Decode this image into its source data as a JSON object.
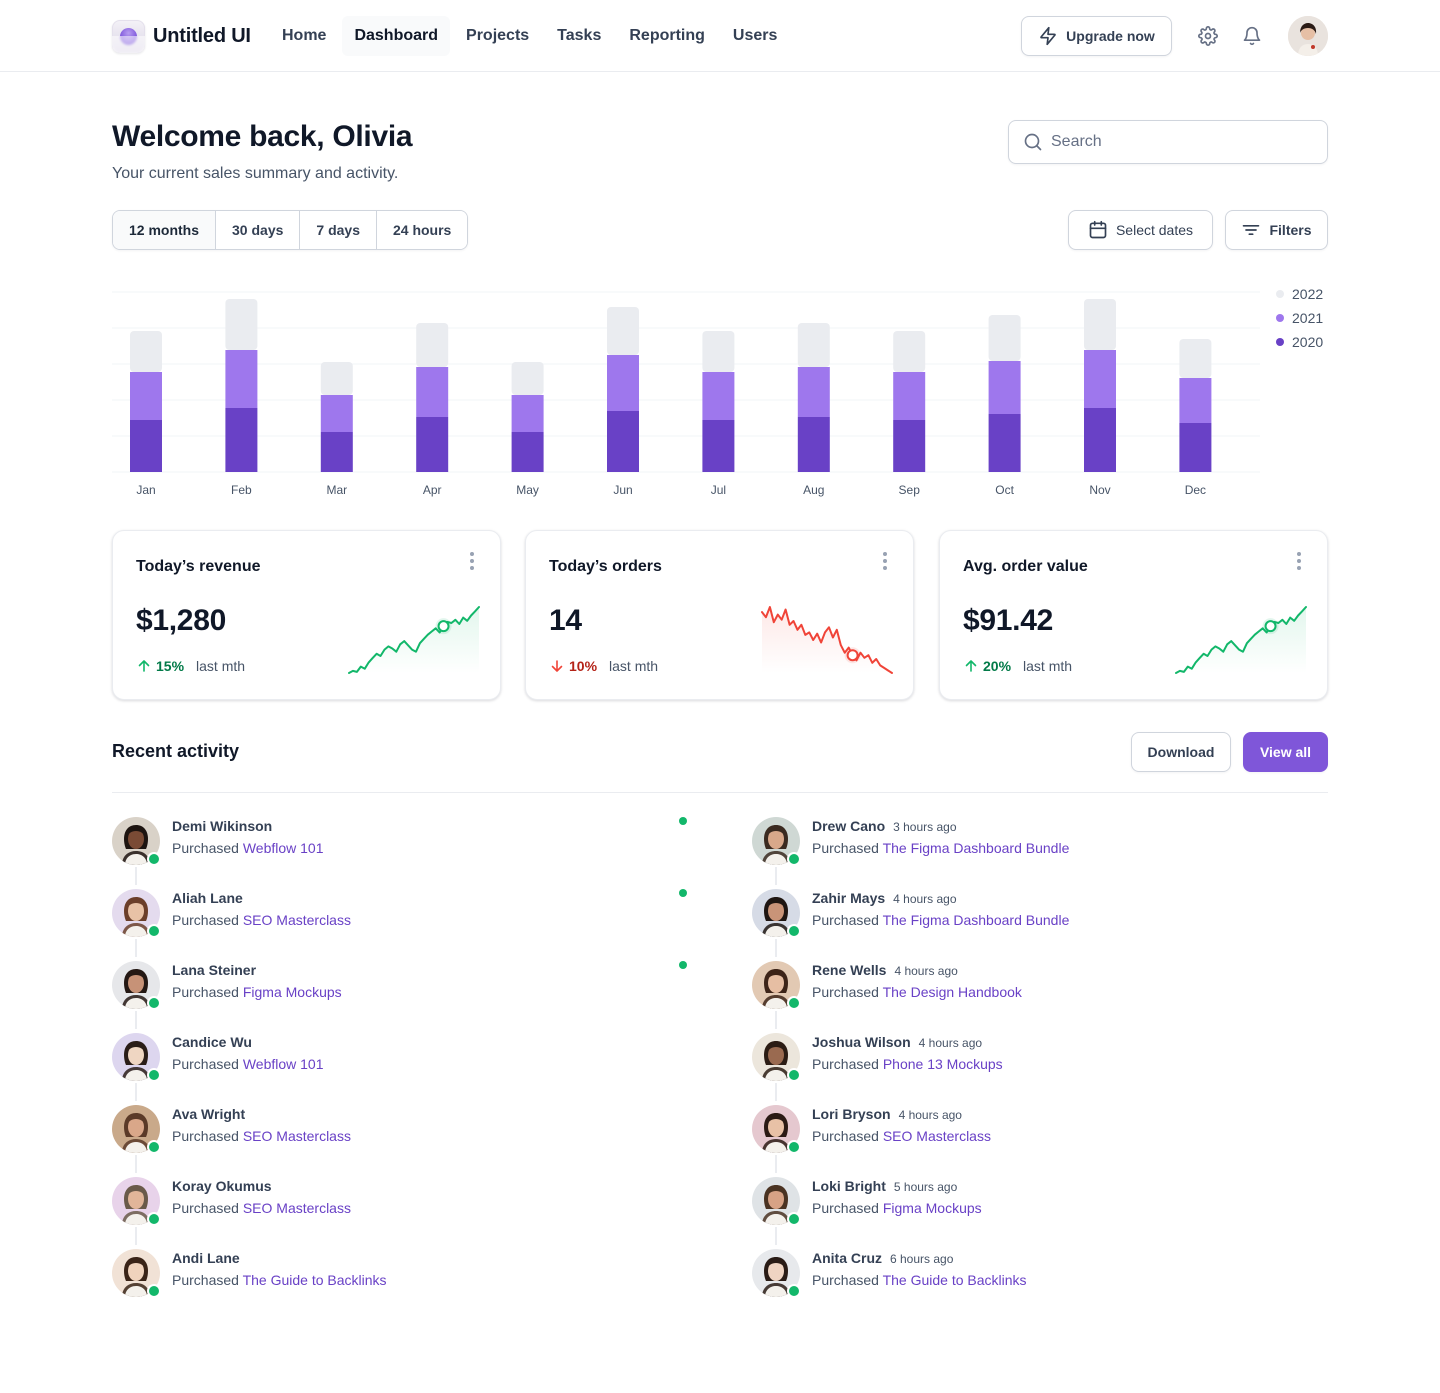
{
  "app": {
    "brand": "Untitled UI",
    "nav": [
      {
        "label": "Home",
        "active": false
      },
      {
        "label": "Dashboard",
        "active": true
      },
      {
        "label": "Projects",
        "active": false
      },
      {
        "label": "Tasks",
        "active": false
      },
      {
        "label": "Reporting",
        "active": false
      },
      {
        "label": "Users",
        "active": false
      }
    ],
    "upgrade_label": "Upgrade now",
    "icons": {
      "upgrade": "lightning-icon",
      "settings": "gear-icon",
      "notifications": "bell-icon"
    }
  },
  "header": {
    "title": "Welcome back, Olivia",
    "subtitle": "Your current sales summary and activity.",
    "search_placeholder": "Search"
  },
  "filters": {
    "ranges": [
      {
        "label": "12 months",
        "active": true
      },
      {
        "label": "30 days",
        "active": false
      },
      {
        "label": "7 days",
        "active": false
      },
      {
        "label": "24 hours",
        "active": false
      }
    ],
    "select_dates_label": "Select dates",
    "filters_label": "Filters"
  },
  "colors": {
    "accent": "#7f56d9",
    "y2022": "#eaecf0",
    "y2021": "#9e77ed",
    "y2020": "#6941c6",
    "positive": "#12b76a",
    "negative": "#f04438"
  },
  "chart_data": {
    "type": "bar",
    "stacked": true,
    "categories": [
      "Jan",
      "Feb",
      "Mar",
      "Apr",
      "May",
      "Jun",
      "Jul",
      "Aug",
      "Sep",
      "Oct",
      "Nov",
      "Dec"
    ],
    "series": [
      {
        "name": "2020",
        "values": [
          52,
          64,
          40,
          55,
          40,
          61,
          52,
          55,
          52,
          58,
          64,
          49
        ]
      },
      {
        "name": "2021",
        "values": [
          48,
          58,
          37,
          50,
          37,
          56,
          48,
          50,
          48,
          53,
          58,
          45
        ]
      },
      {
        "name": "2022",
        "values": [
          41,
          51,
          33,
          44,
          33,
          48,
          41,
          44,
          41,
          46,
          51,
          39
        ]
      }
    ],
    "ylim": [
      0,
      180
    ],
    "grid": true,
    "legend": "top-right"
  },
  "metrics": [
    {
      "title": "Today’s revenue",
      "value": "$1,280",
      "change": "15%",
      "direction": "up",
      "suffix": "last mth",
      "spark": [
        8,
        10,
        9,
        14,
        12,
        18,
        22,
        26,
        24,
        30,
        33,
        31,
        28,
        35,
        38,
        34,
        30,
        28,
        36,
        40,
        44,
        47,
        50,
        46,
        52,
        56,
        55,
        58,
        54,
        60,
        57,
        62,
        66,
        70
      ]
    },
    {
      "title": "Today’s orders",
      "value": "14",
      "change": "10%",
      "direction": "down",
      "suffix": "last mth",
      "spark": [
        62,
        58,
        66,
        54,
        60,
        56,
        64,
        52,
        55,
        48,
        52,
        44,
        46,
        40,
        45,
        38,
        46,
        50,
        42,
        48,
        36,
        30,
        34,
        28,
        24,
        30,
        26,
        28,
        22,
        25,
        20,
        18,
        16,
        14
      ]
    },
    {
      "title": "Avg. order value",
      "value": "$91.42",
      "change": "20%",
      "direction": "up",
      "suffix": "last mth",
      "spark": [
        8,
        10,
        9,
        14,
        12,
        18,
        22,
        26,
        24,
        30,
        33,
        31,
        28,
        35,
        38,
        34,
        30,
        28,
        36,
        40,
        44,
        47,
        50,
        46,
        52,
        56,
        55,
        58,
        54,
        60,
        57,
        62,
        66,
        70
      ]
    }
  ],
  "activity": {
    "title": "Recent activity",
    "download_label": "Download",
    "view_all_label": "View all",
    "left": [
      {
        "name": "Demi Wikinson",
        "time": "",
        "action": "Purchased",
        "item": "Webflow 101",
        "unread": true,
        "skin": "#7a4b35",
        "hair": "#1d1410",
        "bg": "#d9d2c8"
      },
      {
        "name": "Aliah Lane",
        "time": "",
        "action": "Purchased",
        "item": "SEO Masterclass",
        "unread": true,
        "skin": "#e8c2a6",
        "hair": "#6b3f2a",
        "bg": "#e4dbee"
      },
      {
        "name": "Lana Steiner",
        "time": "",
        "action": "Purchased",
        "item": "Figma Mockups",
        "unread": true,
        "skin": "#c79277",
        "hair": "#241814",
        "bg": "#e6e7ea"
      },
      {
        "name": "Candice Wu",
        "time": "",
        "action": "Purchased",
        "item": "Webflow 101",
        "unread": false,
        "skin": "#efd6c2",
        "hair": "#2a1d18",
        "bg": "#ddd6ef"
      },
      {
        "name": "Ava Wright",
        "time": "",
        "action": "Purchased",
        "item": "SEO Masterclass",
        "unread": false,
        "skin": "#d9a789",
        "hair": "#5a3a28",
        "bg": "#c9a98a"
      },
      {
        "name": "Koray Okumus",
        "time": "",
        "action": "Purchased",
        "item": "SEO Masterclass",
        "unread": false,
        "skin": "#e1b599",
        "hair": "#6a5a4a",
        "bg": "#e8d3ea"
      },
      {
        "name": "Andi Lane",
        "time": "",
        "action": "Purchased",
        "item": "The Guide to Backlinks",
        "unread": false,
        "skin": "#f0d3bd",
        "hair": "#3a2418",
        "bg": "#f1e2d6"
      }
    ],
    "right": [
      {
        "name": "Drew Cano",
        "time": "3 hours ago",
        "action": "Purchased",
        "item": "The Figma Dashboard Bundle",
        "unread": false,
        "skin": "#d8a88a",
        "hair": "#3a2a20",
        "bg": "#cfd8d4"
      },
      {
        "name": "Zahir Mays",
        "time": "4 hours ago",
        "action": "Purchased",
        "item": "The Figma Dashboard Bundle",
        "unread": false,
        "skin": "#c99478",
        "hair": "#1f1612",
        "bg": "#d6dbe6"
      },
      {
        "name": "Rene Wells",
        "time": "4 hours ago",
        "action": "Purchased",
        "item": "The Design Handbook",
        "unread": false,
        "skin": "#e6bea3",
        "hair": "#3d2418",
        "bg": "#e2c9b3"
      },
      {
        "name": "Joshua Wilson",
        "time": "4 hours ago",
        "action": "Purchased",
        "item": "Phone 13 Mockups",
        "unread": false,
        "skin": "#9a6a50",
        "hair": "#2b1c14",
        "bg": "#ece6dc"
      },
      {
        "name": "Lori Bryson",
        "time": "4 hours ago",
        "action": "Purchased",
        "item": "SEO Masterclass",
        "unread": false,
        "skin": "#e8c1a6",
        "hair": "#2b1a14",
        "bg": "#e5c8cf"
      },
      {
        "name": "Loki Bright",
        "time": "5 hours ago",
        "action": "Purchased",
        "item": "Figma Mockups",
        "unread": false,
        "skin": "#d7a285",
        "hair": "#4a3322",
        "bg": "#dfe3e6"
      },
      {
        "name": "Anita Cruz",
        "time": "6 hours ago",
        "action": "Purchased",
        "item": "The Guide to Backlinks",
        "unread": false,
        "skin": "#efd4c2",
        "hair": "#2a1c16",
        "bg": "#e7e9ec"
      }
    ]
  }
}
